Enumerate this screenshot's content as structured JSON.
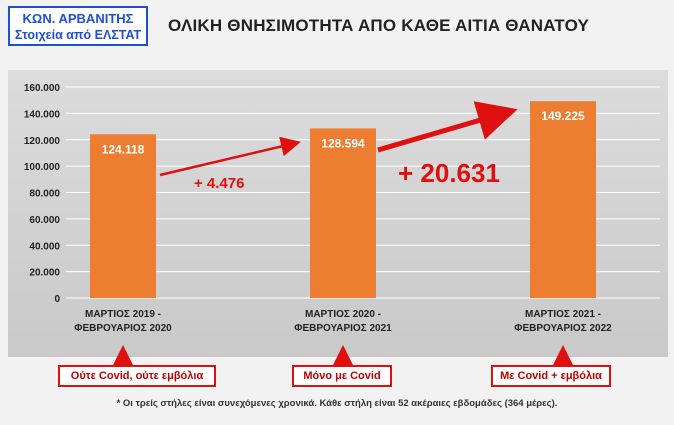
{
  "author": {
    "name": "ΚΩΝ. ΑΡΒΑΝΙΤΗΣ",
    "source": "Στοιχεία από ΕΛΣΤΑΤ"
  },
  "chart_data": {
    "type": "bar",
    "title": "ΟΛΙΚΗ ΘΝΗΣΙΜΟΤΗΤΑ ΑΠΟ ΚΑΘΕ ΑΙΤΙΑ ΘΑΝΑΤΟΥ",
    "categories": [
      [
        "ΜΑΡΤΙΟΣ 2019  -",
        "ΦΕΒΡΟΥΑΡΙΟΣ 2020"
      ],
      [
        "ΜΑΡΤΙΟΣ 2020  -",
        "ΦΕΒΡΟΥΑΡΙΟΣ 2021"
      ],
      [
        "ΜΑΡΤΙΟΣ 2021  -",
        "ΦΕΒΡΟΥΑΡΙΟΣ 2022"
      ]
    ],
    "values": [
      124118,
      128594,
      149225
    ],
    "value_labels": [
      "124.118",
      "128.594",
      "149.225"
    ],
    "ylim": [
      0,
      160000
    ],
    "yticks": [
      0,
      20000,
      40000,
      60000,
      80000,
      100000,
      120000,
      140000,
      160000
    ],
    "ytick_labels": [
      "0",
      "20.000",
      "40.000",
      "60.000",
      "80.000",
      "100.000",
      "120.000",
      "140.000",
      "160.000"
    ],
    "grid": true,
    "bar_color": "#ed7d31",
    "annotations": [
      "+ 4.476",
      "+ 20.631"
    ]
  },
  "category_notes": [
    "Ούτε Covid, ούτε εμβόλια",
    "Μόνο με Covid",
    "Με Covid + εμβόλια"
  ],
  "footnote": "* Οι τρείς στήλες είναι συνεχόμενες χρονικά. Κάθε στήλη είναι 52 ακέραιες εβδομάδες (364 μέρες).",
  "colors": {
    "accent_red": "#e01010",
    "author_blue": "#1f4fd6"
  }
}
